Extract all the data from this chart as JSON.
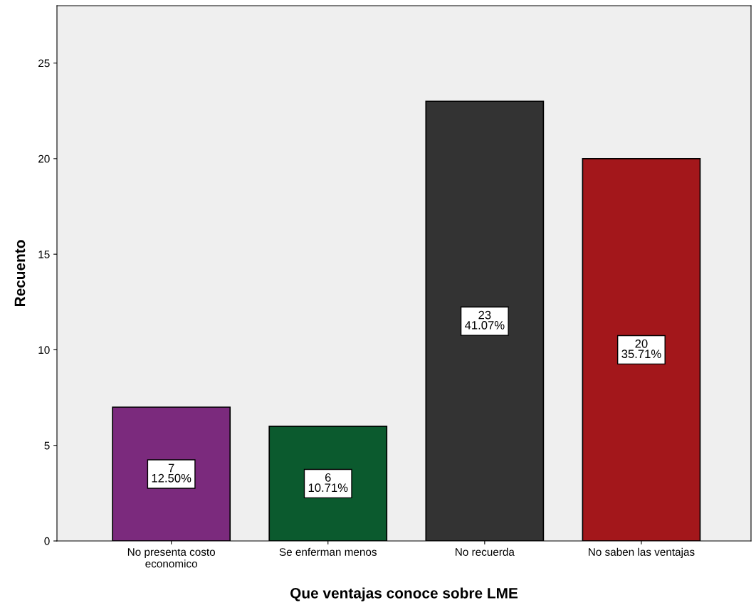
{
  "chart_data": {
    "type": "bar",
    "xlabel": "Que ventajas conoce sobre LME",
    "ylabel": "Recuento",
    "categories": [
      "No presenta costo\neconomico",
      "Se enferman menos",
      "No recuerda",
      "No saben las ventajas"
    ],
    "values": [
      7,
      6,
      23,
      20
    ],
    "colors": [
      "#7b2a7d",
      "#0b5a2e",
      "#333333",
      "#a3171b"
    ],
    "value_labels": [
      "7\n12.50%",
      "6\n10.71%",
      "23\n41.07%",
      "20\n35.71%"
    ],
    "ylim": [
      0,
      28
    ],
    "yticks": [
      0,
      5,
      10,
      15,
      20,
      25
    ],
    "grid": false,
    "legend": false
  }
}
